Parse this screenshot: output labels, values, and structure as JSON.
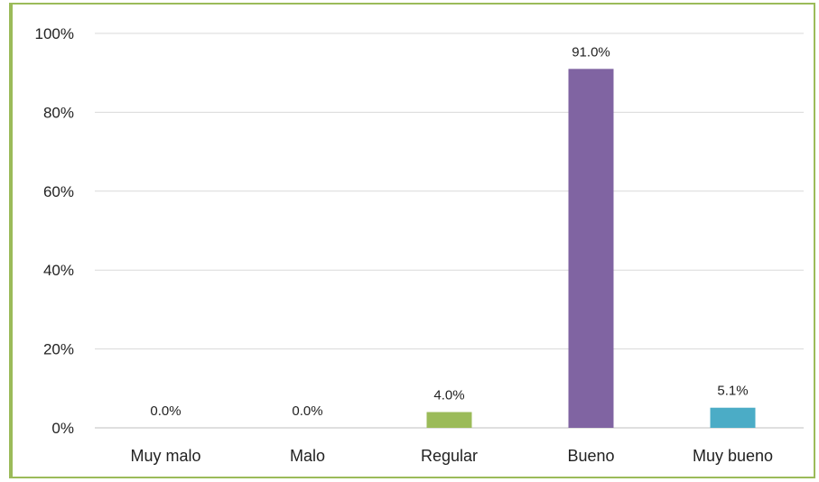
{
  "chart_data": {
    "type": "bar",
    "title": "",
    "xlabel": "",
    "ylabel": "",
    "categories": [
      "Muy malo",
      "Malo",
      "Regular",
      "Bueno",
      "Muy bueno"
    ],
    "values": [
      0.0,
      0.0,
      4.0,
      91.0,
      5.1
    ],
    "data_labels": [
      "0.0%",
      "0.0%",
      "4.0%",
      "91.0%",
      "5.1%"
    ],
    "colors": [
      "#4f81bd",
      "#c0504d",
      "#9bbb59",
      "#8064a2",
      "#4bacc6"
    ],
    "ylim": [
      0,
      100
    ],
    "yticks": [
      "0%",
      "20%",
      "40%",
      "60%",
      "80%",
      "100%"
    ],
    "grid": true,
    "legend": "none",
    "frame_color": "#9bbb59"
  }
}
